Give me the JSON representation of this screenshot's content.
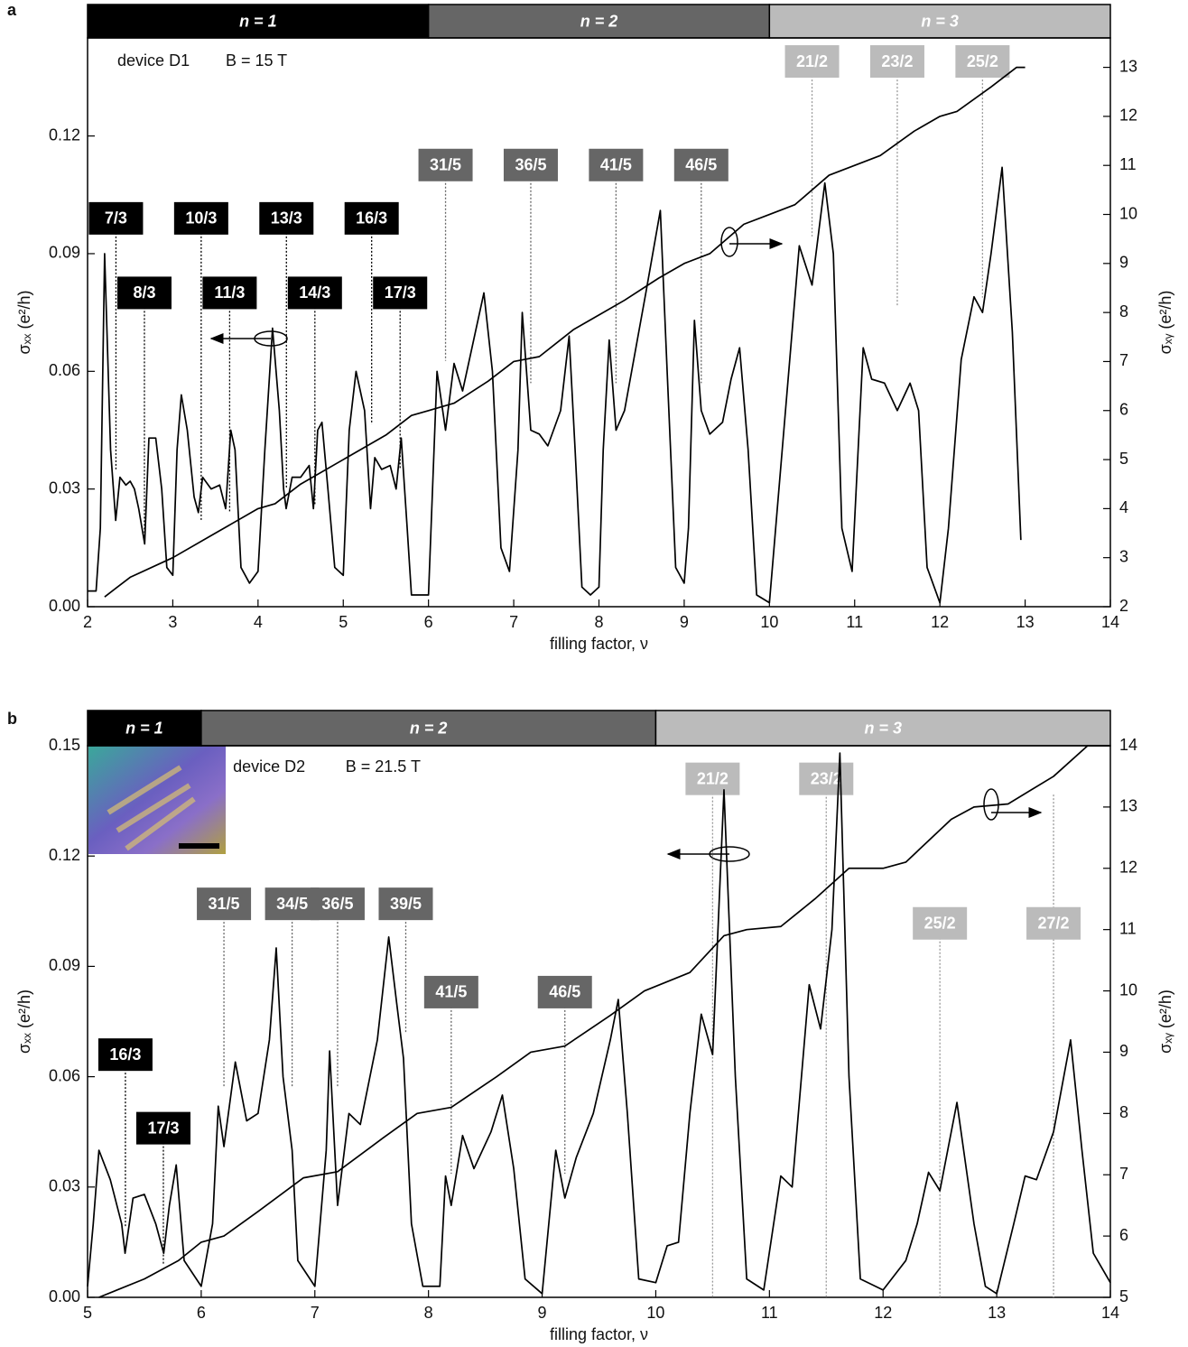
{
  "chart_data": [
    {
      "type": "line",
      "panel_label": "a",
      "xlabel": "filling factor, ν",
      "ylabel": "σₓₓ (e²/h)",
      "y2label": "σₓᵧ (e²/h)",
      "xlim": [
        2,
        14
      ],
      "ylim": [
        0,
        0.145
      ],
      "y2lim": [
        2,
        13.6
      ],
      "xticks": [
        2,
        3,
        4,
        5,
        6,
        7,
        8,
        9,
        10,
        11,
        12,
        13,
        14
      ],
      "yticks": [
        {
          "value": 0,
          "label": "0.00"
        },
        0.03,
        0.06,
        0.09,
        0.12
      ],
      "y2ticks": [
        2,
        3,
        4,
        5,
        6,
        7,
        8,
        9,
        10,
        11,
        12,
        13
      ],
      "bands": [
        {
          "label": "n = 1",
          "from": 2,
          "to": 6,
          "color": "#000000"
        },
        {
          "label": "n = 2",
          "from": 6,
          "to": 10,
          "color": "#666666"
        },
        {
          "label": "n = 3",
          "from": 10,
          "to": 14,
          "color": "#bbbbbb"
        }
      ],
      "texts": [
        {
          "text": "device D1",
          "x": 2.35,
          "y": 0.139
        },
        {
          "text": "B = 15 T",
          "x": 3.62,
          "y": 0.139
        }
      ],
      "annotations": [
        {
          "text": "7/3",
          "x": 2.333,
          "y": 0.099,
          "line": [
            0.099,
            0.035
          ],
          "color": "#000000"
        },
        {
          "text": "8/3",
          "x": 2.667,
          "y": 0.08,
          "line": [
            0.08,
            0.0166
          ],
          "color": "#000000"
        },
        {
          "text": "10/3",
          "x": 3.333,
          "y": 0.099,
          "line": [
            0.099,
            0.022
          ],
          "color": "#000000"
        },
        {
          "text": "11/3",
          "x": 3.667,
          "y": 0.08,
          "line": [
            0.08,
            0.024
          ],
          "color": "#000000"
        },
        {
          "text": "13/3",
          "x": 4.333,
          "y": 0.099,
          "line": [
            0.099,
            0.03
          ],
          "color": "#000000"
        },
        {
          "text": "14/3",
          "x": 4.667,
          "y": 0.08,
          "line": [
            0.08,
            0.026
          ],
          "color": "#000000"
        },
        {
          "text": "16/3",
          "x": 5.333,
          "y": 0.099,
          "line": [
            0.099,
            0.0465
          ],
          "color": "#000000"
        },
        {
          "text": "17/3",
          "x": 5.667,
          "y": 0.08,
          "line": [
            0.08,
            0.035
          ],
          "color": "#000000"
        },
        {
          "text": "31/5",
          "x": 6.2,
          "y": 0.1126,
          "line": [
            0.1126,
            0.0627
          ],
          "color": "#666666"
        },
        {
          "text": "36/5",
          "x": 7.2,
          "y": 0.1126,
          "line": [
            0.1126,
            0.057
          ],
          "color": "#666666"
        },
        {
          "text": "41/5",
          "x": 8.2,
          "y": 0.1126,
          "line": [
            0.1126,
            0.057
          ],
          "color": "#666666"
        },
        {
          "text": "46/5",
          "x": 9.2,
          "y": 0.1126,
          "line": [
            0.1126,
            0.057
          ],
          "color": "#666666"
        },
        {
          "text": "21/2",
          "x": 10.5,
          "y": 0.139,
          "line": [
            0.139,
            0.0944
          ],
          "color": "#bbbbbb"
        },
        {
          "text": "23/2",
          "x": 11.5,
          "y": 0.139,
          "line": [
            0.139,
            0.0765
          ],
          "color": "#bbbbbb"
        },
        {
          "text": "25/2",
          "x": 12.5,
          "y": 0.139,
          "line": [
            0.139,
            0.0788
          ],
          "color": "#bbbbbb"
        }
      ],
      "series": [
        {
          "color": "#000000",
          "x": [
            2.0,
            2.1,
            2.15,
            2.2,
            2.27,
            2.33,
            2.38,
            2.45,
            2.5,
            2.55,
            2.6,
            2.67,
            2.72,
            2.8,
            2.87,
            2.93,
            3.0,
            3.05,
            3.1,
            3.17,
            3.25,
            3.3,
            3.35,
            3.45,
            3.55,
            3.62,
            3.68,
            3.73,
            3.8,
            3.9,
            4.0,
            4.08,
            4.17,
            4.25,
            4.3,
            4.33,
            4.4,
            4.5,
            4.6,
            4.65,
            4.7,
            4.75,
            4.82,
            4.9,
            5.0,
            5.07,
            5.15,
            5.25,
            5.32,
            5.37,
            5.45,
            5.55,
            5.62,
            5.68,
            5.75,
            5.8,
            6.0,
            6.1,
            6.2,
            6.3,
            6.4,
            6.55,
            6.65,
            6.75,
            6.85,
            6.95,
            7.05,
            7.1,
            7.2,
            7.3,
            7.4,
            7.55,
            7.65,
            7.72,
            7.8,
            7.9,
            8.0,
            8.05,
            8.12,
            8.2,
            8.3,
            8.55,
            8.72,
            8.8,
            8.9,
            9.0,
            9.05,
            9.12,
            9.2,
            9.3,
            9.45,
            9.55,
            9.65,
            9.75,
            9.85,
            10.0,
            10.15,
            10.35,
            10.5,
            10.65,
            10.75,
            10.85,
            10.97,
            11.1,
            11.2,
            11.35,
            11.5,
            11.65,
            11.75,
            11.85,
            12.0,
            12.1,
            12.25,
            12.4,
            12.5,
            12.6,
            12.73,
            12.85,
            12.95
          ],
          "values": [
            0.004,
            0.004,
            0.02,
            0.09,
            0.04,
            0.022,
            0.033,
            0.031,
            0.032,
            0.03,
            0.025,
            0.016,
            0.043,
            0.043,
            0.03,
            0.01,
            0.008,
            0.04,
            0.054,
            0.045,
            0.028,
            0.024,
            0.033,
            0.03,
            0.031,
            0.025,
            0.045,
            0.04,
            0.01,
            0.006,
            0.009,
            0.04,
            0.071,
            0.05,
            0.03,
            0.025,
            0.033,
            0.033,
            0.036,
            0.025,
            0.045,
            0.047,
            0.03,
            0.01,
            0.008,
            0.045,
            0.06,
            0.05,
            0.025,
            0.038,
            0.035,
            0.036,
            0.03,
            0.043,
            0.02,
            0.003,
            0.003,
            0.06,
            0.045,
            0.062,
            0.055,
            0.07,
            0.08,
            0.06,
            0.015,
            0.009,
            0.04,
            0.075,
            0.045,
            0.044,
            0.041,
            0.05,
            0.069,
            0.04,
            0.005,
            0.003,
            0.005,
            0.04,
            0.068,
            0.045,
            0.05,
            0.08,
            0.101,
            0.06,
            0.01,
            0.006,
            0.02,
            0.073,
            0.05,
            0.044,
            0.047,
            0.058,
            0.066,
            0.04,
            0.003,
            0.001,
            0.04,
            0.092,
            0.082,
            0.108,
            0.09,
            0.02,
            0.009,
            0.066,
            0.058,
            0.057,
            0.05,
            0.057,
            0.05,
            0.01,
            0.001,
            0.02,
            0.063,
            0.079,
            0.075,
            0.09,
            0.112,
            0.07,
            0.017
          ]
        },
        {
          "color": "#000000",
          "axis": "y2",
          "x": [
            2.2,
            2.5,
            3.0,
            3.5,
            4.0,
            4.2,
            4.5,
            5.0,
            5.5,
            5.8,
            6.0,
            6.3,
            6.7,
            7.0,
            7.3,
            7.7,
            8.0,
            8.3,
            8.7,
            9.0,
            9.3,
            9.7,
            10.0,
            10.3,
            10.7,
            11.0,
            11.3,
            11.7,
            12.0,
            12.2,
            12.6,
            12.9,
            13.0
          ],
          "values": [
            2.2,
            2.6,
            3.0,
            3.5,
            4.0,
            4.1,
            4.5,
            5.0,
            5.5,
            5.9,
            6.0,
            6.15,
            6.6,
            7.0,
            7.1,
            7.65,
            7.95,
            8.25,
            8.7,
            9.0,
            9.2,
            9.8,
            10.0,
            10.2,
            10.8,
            11.0,
            11.2,
            11.7,
            12.0,
            12.1,
            12.6,
            13.0,
            13.0
          ]
        }
      ]
    },
    {
      "type": "line",
      "panel_label": "b",
      "xlabel": "filling factor, ν",
      "ylabel": "σₓₓ (e²/h)",
      "y2label": "σₓᵧ (e²/h)",
      "xlim": [
        5,
        14
      ],
      "ylim": [
        0,
        0.15
      ],
      "y2lim": [
        5,
        14
      ],
      "xticks": [
        5,
        6,
        7,
        8,
        9,
        10,
        11,
        12,
        13,
        14
      ],
      "yticks": [
        {
          "value": 0,
          "label": "0.00"
        },
        0.03,
        0.06,
        0.09,
        0.12,
        0.15
      ],
      "y2ticks": [
        5,
        6,
        7,
        8,
        9,
        10,
        11,
        12,
        13,
        14
      ],
      "bands": [
        {
          "label": "n = 1",
          "from": 5,
          "to": 6,
          "color": "#000000"
        },
        {
          "label": "n = 2",
          "from": 6,
          "to": 10,
          "color": "#666666"
        },
        {
          "label": "n = 3",
          "from": 10,
          "to": 14,
          "color": "#bbbbbb"
        }
      ],
      "texts": [
        {
          "text": "device D2",
          "x": 6.28,
          "y": 0.144
        },
        {
          "text": "B = 21.5 T",
          "x": 7.27,
          "y": 0.144
        }
      ],
      "annotations": [
        {
          "text": "16/3",
          "x": 5.333,
          "y": 0.066,
          "line": [
            0.066,
            0.019
          ],
          "color": "#000000"
        },
        {
          "text": "17/3",
          "x": 5.667,
          "y": 0.046,
          "line": [
            0.046,
            0.009
          ],
          "color": "#000000"
        },
        {
          "text": "31/5",
          "x": 6.2,
          "y": 0.107,
          "line": [
            0.107,
            0.057
          ],
          "color": "#666666"
        },
        {
          "text": "34/5",
          "x": 6.8,
          "y": 0.107,
          "line": [
            0.107,
            0.057
          ],
          "color": "#666666"
        },
        {
          "text": "36/5",
          "x": 7.2,
          "y": 0.107,
          "line": [
            0.107,
            0.057
          ],
          "color": "#666666"
        },
        {
          "text": "39/5",
          "x": 7.8,
          "y": 0.107,
          "line": [
            0.107,
            0.0717
          ],
          "color": "#666666"
        },
        {
          "text": "41/5",
          "x": 8.2,
          "y": 0.083,
          "line": [
            0.083,
            0.0336
          ],
          "color": "#666666"
        },
        {
          "text": "46/5",
          "x": 9.2,
          "y": 0.083,
          "line": [
            0.083,
            0.0336
          ],
          "color": "#666666"
        },
        {
          "text": "21/2",
          "x": 10.5,
          "y": 0.141,
          "line": [
            0.141,
            0
          ],
          "color": "#bbbbbb"
        },
        {
          "text": "23/2",
          "x": 11.5,
          "y": 0.141,
          "line": [
            0.141,
            0
          ],
          "color": "#bbbbbb"
        },
        {
          "text": "25/2",
          "x": 12.5,
          "y": 0.1017,
          "line": [
            0.1017,
            0
          ],
          "color": "#bbbbbb"
        },
        {
          "text": "27/2",
          "x": 13.5,
          "y": 0.1017,
          "line": [
            0.1367,
            0
          ],
          "color": "#bbbbbb"
        }
      ],
      "series": [
        {
          "color": "#000000",
          "x": [
            5.0,
            5.05,
            5.1,
            5.2,
            5.3,
            5.33,
            5.4,
            5.5,
            5.6,
            5.67,
            5.72,
            5.78,
            5.85,
            6.0,
            6.1,
            6.15,
            6.2,
            6.3,
            6.4,
            6.5,
            6.6,
            6.66,
            6.72,
            6.8,
            6.85,
            7.0,
            7.1,
            7.13,
            7.2,
            7.3,
            7.4,
            7.55,
            7.65,
            7.72,
            7.78,
            7.85,
            7.95,
            8.1,
            8.15,
            8.2,
            8.3,
            8.4,
            8.55,
            8.65,
            8.75,
            8.85,
            9.0,
            9.12,
            9.2,
            9.3,
            9.45,
            9.6,
            9.67,
            9.75,
            9.85,
            10.0,
            10.1,
            10.2,
            10.3,
            10.4,
            10.5,
            10.6,
            10.7,
            10.8,
            10.95,
            11.1,
            11.2,
            11.35,
            11.45,
            11.55,
            11.62,
            11.7,
            11.8,
            12.0,
            12.2,
            12.3,
            12.4,
            12.5,
            12.65,
            12.8,
            12.9,
            13.0,
            13.15,
            13.25,
            13.35,
            13.5,
            13.65,
            13.75,
            13.85,
            14.0
          ],
          "values": [
            0.003,
            0.02,
            0.04,
            0.032,
            0.02,
            0.012,
            0.027,
            0.028,
            0.02,
            0.012,
            0.025,
            0.036,
            0.01,
            0.003,
            0.02,
            0.052,
            0.041,
            0.064,
            0.048,
            0.05,
            0.07,
            0.095,
            0.06,
            0.04,
            0.01,
            0.003,
            0.04,
            0.067,
            0.025,
            0.05,
            0.047,
            0.07,
            0.098,
            0.08,
            0.065,
            0.02,
            0.003,
            0.003,
            0.033,
            0.025,
            0.044,
            0.035,
            0.045,
            0.055,
            0.035,
            0.005,
            0.001,
            0.04,
            0.027,
            0.038,
            0.05,
            0.07,
            0.081,
            0.05,
            0.005,
            0.004,
            0.014,
            0.015,
            0.05,
            0.077,
            0.066,
            0.138,
            0.06,
            0.005,
            0.002,
            0.033,
            0.03,
            0.085,
            0.073,
            0.1,
            0.148,
            0.06,
            0.005,
            0.002,
            0.01,
            0.02,
            0.034,
            0.029,
            0.053,
            0.02,
            0.003,
            0.001,
            0.02,
            0.033,
            0.032,
            0.045,
            0.07,
            0.04,
            0.012,
            0.004
          ]
        },
        {
          "color": "#000000",
          "axis": "y2",
          "x": [
            5.1,
            5.5,
            5.8,
            6.0,
            6.2,
            6.5,
            6.9,
            7.2,
            7.6,
            7.9,
            8.2,
            8.6,
            8.9,
            9.2,
            9.6,
            9.9,
            10.3,
            10.6,
            10.8,
            11.1,
            11.4,
            11.7,
            12.0,
            12.2,
            12.6,
            12.8,
            13.1,
            13.5,
            13.8,
            14.0
          ],
          "values": [
            5.0,
            5.3,
            5.6,
            5.9,
            6.0,
            6.4,
            6.95,
            7.05,
            7.6,
            8.0,
            8.1,
            8.6,
            9.0,
            9.1,
            9.6,
            10.0,
            10.3,
            10.9,
            11.0,
            11.05,
            11.5,
            12.0,
            12.0,
            12.1,
            12.8,
            13.0,
            13.05,
            13.5,
            14.0,
            14.0
          ]
        }
      ]
    }
  ]
}
